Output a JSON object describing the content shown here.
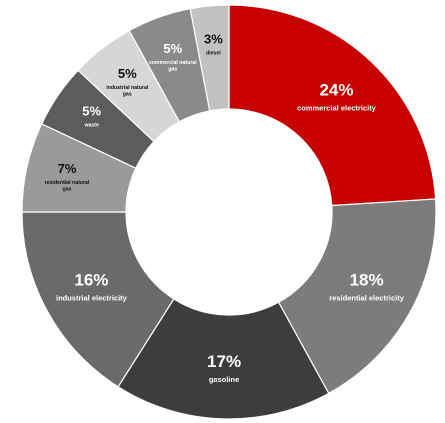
{
  "chart_data": {
    "type": "pie",
    "variant": "donut",
    "title": "",
    "legend": "none",
    "slices": [
      {
        "label": "commercial electricity",
        "value": 24,
        "pct_text": "24%",
        "color": "#c70000",
        "text_color": "#ffffff"
      },
      {
        "label": "residential electricity",
        "value": 18,
        "pct_text": "18%",
        "color": "#7c7c7c",
        "text_color": "#ffffff"
      },
      {
        "label": "gasoline",
        "value": 17,
        "pct_text": "17%",
        "color": "#3d3d3d",
        "text_color": "#ffffff"
      },
      {
        "label": "industrial electricity",
        "value": 16,
        "pct_text": "16%",
        "color": "#6a6a6a",
        "text_color": "#ffffff"
      },
      {
        "label": "residential natural gas",
        "value": 7,
        "pct_text": "7%",
        "color": "#9a9a9a",
        "text_color": "#111111"
      },
      {
        "label": "waste",
        "value": 5,
        "pct_text": "5%",
        "color": "#5c5c5c",
        "text_color": "#ffffff"
      },
      {
        "label": "industrial natural gas",
        "value": 5,
        "pct_text": "5%",
        "color": "#d6d6d6",
        "text_color": "#111111"
      },
      {
        "label": "commercial natural gas",
        "value": 5,
        "pct_text": "5%",
        "color": "#8a8a8a",
        "text_color": "#ffffff"
      },
      {
        "label": "diesel",
        "value": 3,
        "pct_text": "3%",
        "color": "#c2c2c2",
        "text_color": "#111111"
      }
    ]
  }
}
